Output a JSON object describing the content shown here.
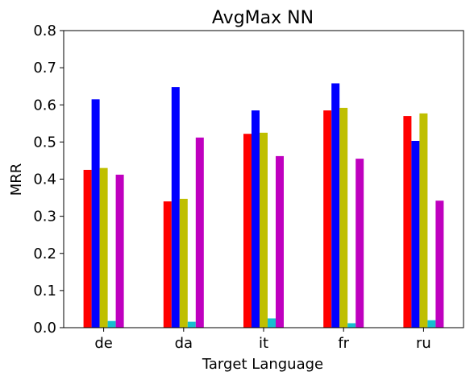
{
  "chart_data": {
    "type": "bar",
    "title": "AvgMax NN",
    "xlabel": "Target Language",
    "ylabel": "MRR",
    "categories": [
      "de",
      "da",
      "it",
      "fr",
      "ru"
    ],
    "ylim": [
      0.0,
      0.8
    ],
    "yticks": [
      "0.0",
      "0.1",
      "0.2",
      "0.3",
      "0.4",
      "0.5",
      "0.6",
      "0.7",
      "0.8"
    ],
    "grid": false,
    "legend": "none",
    "series": [
      {
        "color": "#ff0000",
        "values": [
          0.425,
          0.34,
          0.522,
          0.585,
          0.57
        ]
      },
      {
        "color": "#0000ff",
        "values": [
          0.615,
          0.648,
          0.585,
          0.658,
          0.503
        ]
      },
      {
        "color": "#bfbf00",
        "values": [
          0.43,
          0.347,
          0.525,
          0.592,
          0.577
        ]
      },
      {
        "color": "#17becf",
        "values": [
          0.018,
          0.016,
          0.025,
          0.012,
          0.02
        ]
      },
      {
        "color": "#bf00bf",
        "values": [
          0.412,
          0.512,
          0.462,
          0.455,
          0.342
        ]
      }
    ]
  }
}
